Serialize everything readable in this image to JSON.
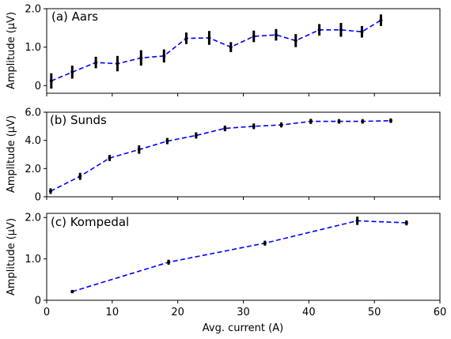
{
  "chart_data": [
    {
      "type": "line",
      "title": "(a) Aars",
      "ylabel": "Amplitude (μV)",
      "xlabel": "",
      "xlim": [
        0,
        60
      ],
      "ylim": [
        -0.2,
        2.0
      ],
      "yticks": [
        0,
        1.0,
        2.0
      ],
      "ytick_labels": [
        "0",
        "1.0",
        "2.0"
      ],
      "xticks": [
        0,
        10,
        20,
        30,
        40,
        50,
        60
      ],
      "xtick_labels": [],
      "grid": false,
      "line_color": "#0000ff",
      "marker_color": "#000000",
      "x": [
        0.7,
        3.9,
        7.5,
        10.8,
        14.4,
        17.9,
        21.3,
        24.8,
        28.1,
        31.6,
        35.0,
        38.0,
        41.6,
        44.9,
        48.1,
        51.0
      ],
      "y": [
        0.12,
        0.35,
        0.6,
        0.57,
        0.72,
        0.77,
        1.23,
        1.24,
        1.0,
        1.28,
        1.32,
        1.17,
        1.45,
        1.45,
        1.4,
        1.7
      ],
      "yerr": [
        0.2,
        0.17,
        0.15,
        0.2,
        0.2,
        0.17,
        0.15,
        0.18,
        0.13,
        0.15,
        0.15,
        0.17,
        0.15,
        0.18,
        0.15,
        0.15
      ]
    },
    {
      "type": "line",
      "title": "(b) Sunds",
      "ylabel": "Amplitude (μV)",
      "xlabel": "",
      "xlim": [
        0,
        60
      ],
      "ylim": [
        0,
        6.0
      ],
      "yticks": [
        0,
        2.0,
        4.0,
        6.0
      ],
      "ytick_labels": [
        "0",
        "2.0",
        "4.0",
        "6.0"
      ],
      "xticks": [
        0,
        10,
        20,
        30,
        40,
        50,
        60
      ],
      "xtick_labels": [],
      "grid": false,
      "line_color": "#0000ff",
      "marker_color": "#000000",
      "x": [
        0.6,
        5.1,
        9.6,
        14.1,
        18.4,
        22.8,
        27.2,
        31.6,
        35.8,
        40.3,
        44.6,
        48.2,
        52.5
      ],
      "y": [
        0.4,
        1.45,
        2.75,
        3.35,
        3.95,
        4.35,
        4.85,
        5.0,
        5.1,
        5.35,
        5.35,
        5.35,
        5.4
      ],
      "yerr": [
        0.2,
        0.25,
        0.22,
        0.3,
        0.22,
        0.22,
        0.2,
        0.2,
        0.18,
        0.18,
        0.16,
        0.16,
        0.16
      ]
    },
    {
      "type": "line",
      "title": "(c) Kompedal",
      "ylabel": "Amplitude (μV)",
      "xlabel": "Avg. current (A)",
      "xlim": [
        0,
        60
      ],
      "ylim": [
        0,
        2.1
      ],
      "yticks": [
        0,
        1.0,
        2.0
      ],
      "ytick_labels": [
        "0",
        "1.0",
        "2.0"
      ],
      "xticks": [
        0,
        10,
        20,
        30,
        40,
        50,
        60
      ],
      "xtick_labels": [
        "0",
        "10",
        "20",
        "30",
        "40",
        "50",
        "60"
      ],
      "grid": false,
      "line_color": "#0000ff",
      "marker_color": "#000000",
      "x": [
        3.9,
        18.6,
        33.3,
        47.4,
        54.9
      ],
      "y": [
        0.21,
        0.92,
        1.38,
        1.92,
        1.87
      ],
      "yerr": [
        0.04,
        0.06,
        0.06,
        0.1,
        0.06
      ]
    }
  ]
}
